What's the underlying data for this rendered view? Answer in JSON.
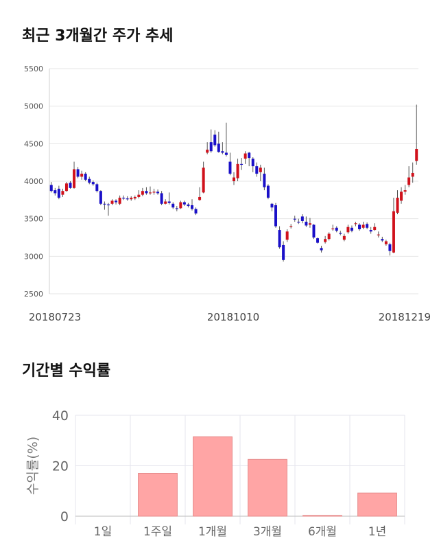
{
  "section1": {
    "title": "최근 3개월간 주가 추세"
  },
  "section2": {
    "title": "기간별 수익률"
  },
  "chart_data": [
    {
      "type": "candlestick",
      "title": "최근 3개월간 주가 추세",
      "ylim": [
        2500,
        5500
      ],
      "yticks": [
        2500,
        3000,
        3500,
        4000,
        4500,
        5000,
        5500
      ],
      "xlabels": [
        "20180723",
        "20181010",
        "20181219"
      ],
      "grid": true,
      "colors": {
        "up": "#d0111b",
        "down": "#1a10c8",
        "wick": "#555555"
      },
      "candles": [
        [
          3950,
          3870,
          3990,
          3850
        ],
        [
          3880,
          3840,
          3910,
          3810
        ],
        [
          3900,
          3780,
          3940,
          3760
        ],
        [
          3820,
          3870,
          3900,
          3790
        ],
        [
          3870,
          3970,
          3990,
          3860
        ],
        [
          3980,
          3910,
          4000,
          3900
        ],
        [
          3910,
          4160,
          4260,
          3900
        ],
        [
          4160,
          4060,
          4190,
          4040
        ],
        [
          4060,
          4100,
          4140,
          4020
        ],
        [
          4100,
          4020,
          4120,
          4000
        ],
        [
          4030,
          3980,
          4060,
          3960
        ],
        [
          3990,
          3960,
          4010,
          3940
        ],
        [
          3960,
          3870,
          3980,
          3850
        ],
        [
          3870,
          3700,
          3880,
          3680
        ],
        [
          3700,
          3690,
          3730,
          3620
        ],
        [
          3690,
          3680,
          3710,
          3540
        ],
        [
          3700,
          3740,
          3760,
          3680
        ],
        [
          3740,
          3720,
          3760,
          3690
        ],
        [
          3700,
          3780,
          3810,
          3680
        ],
        [
          3780,
          3770,
          3810,
          3750
        ],
        [
          3770,
          3760,
          3800,
          3740
        ],
        [
          3760,
          3780,
          3800,
          3740
        ],
        [
          3770,
          3790,
          3810,
          3750
        ],
        [
          3790,
          3820,
          3880,
          3770
        ],
        [
          3820,
          3870,
          3910,
          3800
        ],
        [
          3870,
          3840,
          3920,
          3820
        ],
        [
          3840,
          3850,
          3930,
          3820
        ],
        [
          3850,
          3860,
          3900,
          3820
        ],
        [
          3860,
          3840,
          3890,
          3820
        ],
        [
          3840,
          3700,
          3870,
          3680
        ],
        [
          3700,
          3730,
          3760,
          3690
        ],
        [
          3730,
          3710,
          3850,
          3690
        ],
        [
          3700,
          3650,
          3720,
          3630
        ],
        [
          3640,
          3630,
          3670,
          3600
        ],
        [
          3640,
          3720,
          3740,
          3630
        ],
        [
          3720,
          3690,
          3740,
          3670
        ],
        [
          3690,
          3670,
          3710,
          3650
        ],
        [
          3680,
          3630,
          3760,
          3610
        ],
        [
          3630,
          3570,
          3650,
          3550
        ],
        [
          3750,
          3790,
          3920,
          3740
        ],
        [
          3850,
          4180,
          4260,
          3840
        ],
        [
          4380,
          4420,
          4520,
          4360
        ],
        [
          4520,
          4400,
          4690,
          4380
        ],
        [
          4620,
          4480,
          4680,
          4460
        ],
        [
          4500,
          4390,
          4660,
          4380
        ],
        [
          4400,
          4380,
          4520,
          4360
        ],
        [
          4380,
          4350,
          4780,
          4330
        ],
        [
          4260,
          4100,
          4380,
          4080
        ],
        [
          4000,
          4050,
          4120,
          3950
        ],
        [
          4040,
          4230,
          4300,
          4000
        ],
        [
          4230,
          4220,
          4310,
          4150
        ],
        [
          4300,
          4370,
          4400,
          4230
        ],
        [
          4380,
          4310,
          4390,
          4200
        ],
        [
          4300,
          4200,
          4320,
          4120
        ],
        [
          4200,
          4100,
          4250,
          4060
        ],
        [
          4120,
          4180,
          4220,
          4000
        ],
        [
          4100,
          3920,
          4180,
          3880
        ],
        [
          3940,
          3780,
          3960,
          3760
        ],
        [
          3700,
          3650,
          3710,
          3600
        ],
        [
          3680,
          3400,
          3710,
          3380
        ],
        [
          3350,
          3120,
          3400,
          3100
        ],
        [
          3150,
          2950,
          3200,
          2930
        ],
        [
          3220,
          3330,
          3360,
          3190
        ],
        [
          3400,
          3400,
          3430,
          3370
        ],
        [
          3500,
          3490,
          3540,
          3460
        ],
        [
          3460,
          3450,
          3500,
          3430
        ],
        [
          3530,
          3470,
          3560,
          3440
        ],
        [
          3460,
          3410,
          3530,
          3390
        ],
        [
          3420,
          3440,
          3510,
          3380
        ],
        [
          3420,
          3250,
          3430,
          3230
        ],
        [
          3240,
          3180,
          3250,
          3170
        ],
        [
          3110,
          3080,
          3140,
          3050
        ],
        [
          3190,
          3230,
          3270,
          3170
        ],
        [
          3230,
          3300,
          3320,
          3210
        ],
        [
          3370,
          3370,
          3420,
          3340
        ],
        [
          3380,
          3340,
          3400,
          3320
        ],
        [
          3310,
          3300,
          3340,
          3280
        ],
        [
          3220,
          3270,
          3300,
          3200
        ],
        [
          3320,
          3390,
          3420,
          3300
        ],
        [
          3380,
          3340,
          3410,
          3320
        ],
        [
          3430,
          3440,
          3460,
          3400
        ],
        [
          3420,
          3360,
          3440,
          3340
        ],
        [
          3380,
          3420,
          3460,
          3360
        ],
        [
          3430,
          3380,
          3450,
          3360
        ],
        [
          3350,
          3330,
          3390,
          3300
        ],
        [
          3350,
          3390,
          3440,
          3340
        ],
        [
          3290,
          3290,
          3330,
          3250
        ],
        [
          3230,
          3210,
          3260,
          3190
        ],
        [
          3160,
          3200,
          3220,
          3140
        ],
        [
          3160,
          3070,
          3180,
          3010
        ],
        [
          3050,
          3600,
          3780,
          3040
        ],
        [
          3580,
          3780,
          3880,
          3560
        ],
        [
          3740,
          3860,
          3920,
          3700
        ],
        [
          3860,
          3880,
          3950,
          3820
        ],
        [
          3950,
          4050,
          4200,
          3920
        ],
        [
          4060,
          4110,
          4250,
          3980
        ],
        [
          4270,
          4430,
          5020,
          4220
        ]
      ]
    },
    {
      "type": "bar",
      "categories": [
        "1일",
        "1주일",
        "1개월",
        "3개월",
        "6개월",
        "1년"
      ],
      "values": [
        0,
        17,
        31.5,
        22.5,
        0.3,
        9.2
      ],
      "ylabel": "수익률(%)",
      "ylim": [
        0,
        40
      ],
      "yticks": [
        0,
        20,
        40
      ],
      "colors": {
        "fill": "#ffa5a5",
        "stroke": "#e58888"
      },
      "grid": true
    }
  ]
}
